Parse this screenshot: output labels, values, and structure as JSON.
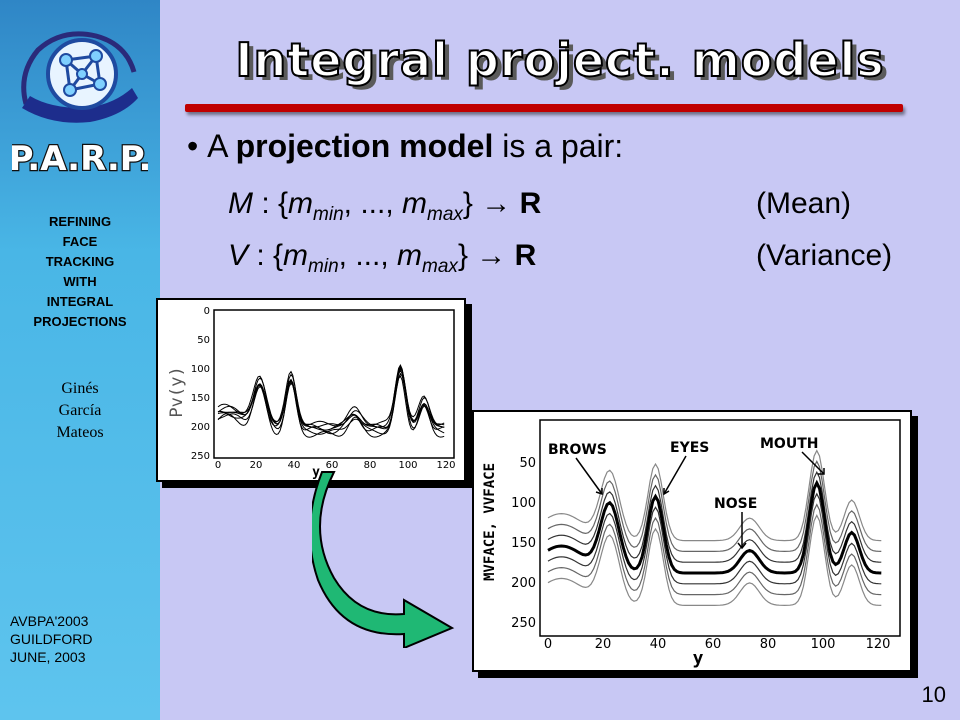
{
  "sidebar": {
    "logo_text": "P.A.R.P.",
    "title_lines": [
      "REFINING",
      "FACE",
      "TRACKING",
      "WITH",
      "INTEGRAL",
      "PROJECTIONS"
    ],
    "author_lines": [
      "Ginés",
      "García",
      "Mateos"
    ],
    "conference_lines": [
      "AVBPA'2003",
      "GUILDFORD",
      "JUNE, 2003"
    ]
  },
  "slide": {
    "title": "Integral project. models",
    "bullet_prefix": "A ",
    "bullet_bold": "projection model",
    "bullet_suffix": " is a pair:",
    "formulas": [
      {
        "letter": "M",
        "open": " : {",
        "m1": "m",
        "sub1": "min",
        "mid": ", ..., ",
        "m2": "m",
        "sub2": "max",
        "close": "}",
        "arrow": " → ",
        "target": "R",
        "note": "(Mean)"
      },
      {
        "letter": "V",
        "open": " : {",
        "m1": "m",
        "sub1": "min",
        "mid": ", ..., ",
        "m2": "m",
        "sub2": "max",
        "close": "}",
        "arrow": " → ",
        "target": "R",
        "note": "(Variance)"
      }
    ],
    "page_number": "10"
  },
  "plot_small": {
    "ylabel": "Pv(y)",
    "xlabel": "y",
    "x_ticks": [
      "0",
      "20",
      "40",
      "60",
      "80",
      "100",
      "120"
    ],
    "y_ticks": [
      "0",
      "50",
      "100",
      "150",
      "200",
      "250"
    ]
  },
  "plot_large": {
    "ylabel": "MVFACE, VVFACE",
    "xlabel": "y",
    "x_ticks": [
      "0",
      "20",
      "40",
      "60",
      "80",
      "100",
      "120"
    ],
    "y_ticks": [
      "50",
      "100",
      "150",
      "200",
      "250"
    ],
    "annotations": {
      "brows": "BROWS",
      "eyes": "EYES",
      "mouth": "MOUTH",
      "nose": "NOSE"
    }
  },
  "colors": {
    "slide_background": "#c8c8f4",
    "sidebar_top": "#2f86c6",
    "sidebar_bottom": "#5ec4ee",
    "title_rule": "#c00000",
    "arrow_fill": "#1fb874"
  }
}
